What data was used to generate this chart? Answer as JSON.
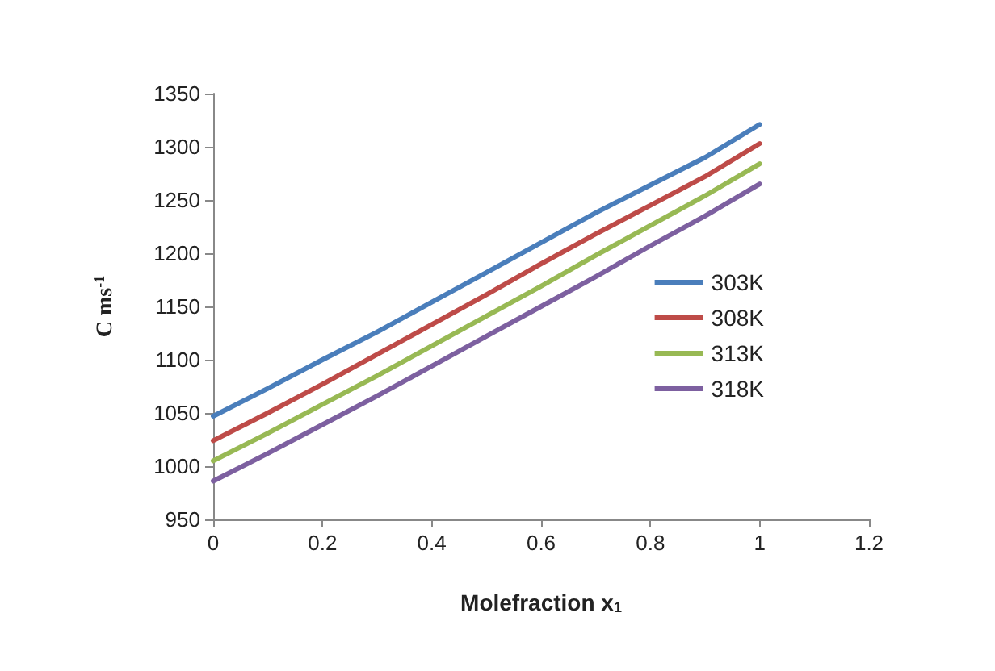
{
  "chart_data": {
    "type": "line",
    "xlabel": "Molefraction x$_{1}$",
    "ylabel": "C ms$^{-1}$",
    "x": [
      0,
      0.1,
      0.2,
      0.3,
      0.4,
      0.5,
      0.6,
      0.7,
      0.8,
      0.9,
      1
    ],
    "series": [
      {
        "name": "303K",
        "color": "#4a7ebb",
        "values": [
          1047,
          1073,
          1100,
          1126,
          1154,
          1182,
          1210,
          1238,
          1264,
          1290,
          1321
        ]
      },
      {
        "name": "308K",
        "color": "#be4b48",
        "values": [
          1024,
          1050,
          1077,
          1105,
          1133,
          1161,
          1190,
          1218,
          1245,
          1272,
          1303
        ]
      },
      {
        "name": "313K",
        "color": "#98b954",
        "values": [
          1005,
          1031,
          1058,
          1085,
          1113,
          1141,
          1169,
          1198,
          1226,
          1254,
          1284
        ]
      },
      {
        "name": "318K",
        "color": "#7d60a0",
        "values": [
          986,
          1012,
          1039,
          1066,
          1094,
          1122,
          1150,
          1178,
          1207,
          1235,
          1265
        ]
      }
    ],
    "xlim": [
      0,
      1.2
    ],
    "xticks": [
      0,
      0.2,
      0.4,
      0.6,
      0.8,
      1,
      1.2
    ],
    "ylim": [
      950,
      1350
    ],
    "yticks": [
      950,
      1000,
      1050,
      1100,
      1150,
      1200,
      1250,
      1300,
      1350
    ],
    "grid": false,
    "legend": "right",
    "marker": "none",
    "line_style": "solid"
  }
}
